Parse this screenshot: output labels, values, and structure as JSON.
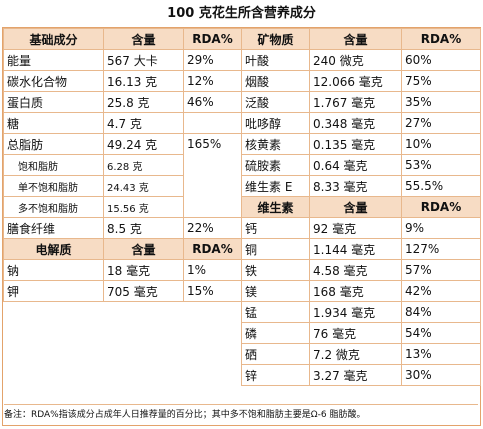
{
  "title": "100 克花生所含营养成分",
  "basic": {
    "headers": [
      "基础成分",
      "含量",
      "RDA%"
    ],
    "rows": [
      {
        "name": "能量",
        "amount": "567 大卡",
        "rda": "29%"
      },
      {
        "name": "碳水化合物",
        "amount": "16.13 克",
        "rda": "12%"
      },
      {
        "name": "蛋白质",
        "amount": "25.8 克",
        "rda": "46%"
      },
      {
        "name": "糖",
        "amount": "4.7 克",
        "rda": ""
      },
      {
        "name": "总脂肪",
        "amount": "49.24 克",
        "rda": "165%"
      },
      {
        "name": "饱和脂肪",
        "amount": "6.28 克",
        "rda": ""
      },
      {
        "name": "单不饱和脂肪",
        "amount": "24.43 克",
        "rda": ""
      },
      {
        "name": "多不饱和脂肪",
        "amount": "15.56 克",
        "rda": ""
      },
      {
        "name": "膳食纤维",
        "amount": "8.5 克",
        "rda": "22%"
      }
    ]
  },
  "electrolytes": {
    "headers": [
      "电解质",
      "含量",
      "RDA%"
    ],
    "rows": [
      {
        "name": "钠",
        "amount": "18 毫克",
        "rda": "1%"
      },
      {
        "name": "钾",
        "amount": "705 毫克",
        "rda": "15%"
      }
    ]
  },
  "minerals_a": {
    "headers": [
      "矿物质",
      "含量",
      "RDA%"
    ],
    "rows": [
      {
        "name": "叶酸",
        "amount": "240 微克",
        "rda": "60%"
      },
      {
        "name": "烟酸",
        "amount": "12.066 毫克",
        "rda": "75%"
      },
      {
        "name": "泛酸",
        "amount": "1.767 毫克",
        "rda": "35%"
      },
      {
        "name": "吡哆醇",
        "amount": "0.348 毫克",
        "rda": "27%"
      },
      {
        "name": "核黄素",
        "amount": "0.135 毫克",
        "rda": "10%"
      },
      {
        "name": "硫胺素",
        "amount": "0.64 毫克",
        "rda": "53%"
      },
      {
        "name": "维生素 E",
        "amount": "8.33 毫克",
        "rda": "55.5%"
      }
    ]
  },
  "vitamins": {
    "headers": [
      "维生素",
      "含量",
      "RDA%"
    ],
    "rows": [
      {
        "name": "钙",
        "amount": "92 毫克",
        "rda": "9%"
      },
      {
        "name": "铜",
        "amount": "1.144 毫克",
        "rda": "127%"
      },
      {
        "name": "铁",
        "amount": "4.58 毫克",
        "rda": "57%"
      },
      {
        "name": "镁",
        "amount": "168 毫克",
        "rda": "42%"
      },
      {
        "name": "锰",
        "amount": "1.934 毫克",
        "rda": "84%"
      },
      {
        "name": "磷",
        "amount": "76 毫克",
        "rda": "54%"
      },
      {
        "name": "硒",
        "amount": "7.2 微克",
        "rda": "13%"
      },
      {
        "name": "锌",
        "amount": "3.27 毫克",
        "rda": "30%"
      }
    ]
  },
  "note": "备注：RDA%指该成分占成年人日推荐量的百分比；其中多不饱和脂肪主要是Ω-6 脂肪酸。",
  "colors": {
    "header_bg": "#f7dcc4",
    "border": "#e8b88d"
  }
}
